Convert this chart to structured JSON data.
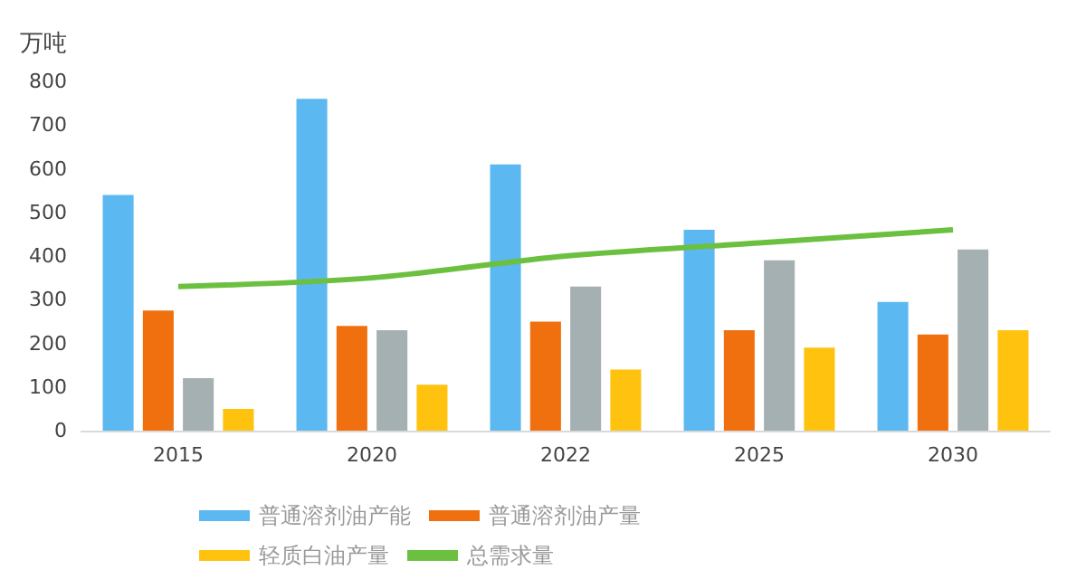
{
  "chart_data": {
    "type": "bar",
    "ylabel": "万吨",
    "categories": [
      "2015",
      "2020",
      "2022",
      "2025",
      "2030"
    ],
    "series": [
      {
        "name": "普通溶剂油产能",
        "color": "#5bb8f0",
        "values": [
          540,
          760,
          610,
          460,
          295
        ]
      },
      {
        "name": "普通溶剂油产量",
        "color": "#f07010",
        "values": [
          275,
          240,
          250,
          230,
          220
        ]
      },
      {
        "color": "#a5b0b2",
        "values": [
          120,
          230,
          330,
          390,
          415
        ]
      },
      {
        "name": "轻质白油产量",
        "color": "#ffc20e",
        "values": [
          50,
          105,
          140,
          190,
          230
        ]
      },
      {
        "name": "总需求量",
        "type": "line",
        "color": "#6cc040",
        "values": [
          330,
          350,
          400,
          430,
          460
        ]
      }
    ],
    "ylim": [
      0,
      800
    ],
    "yticks": [
      0,
      100,
      200,
      300,
      400,
      500,
      600,
      700,
      800
    ],
    "grid": false,
    "legend": "bottom",
    "marker": "none"
  }
}
